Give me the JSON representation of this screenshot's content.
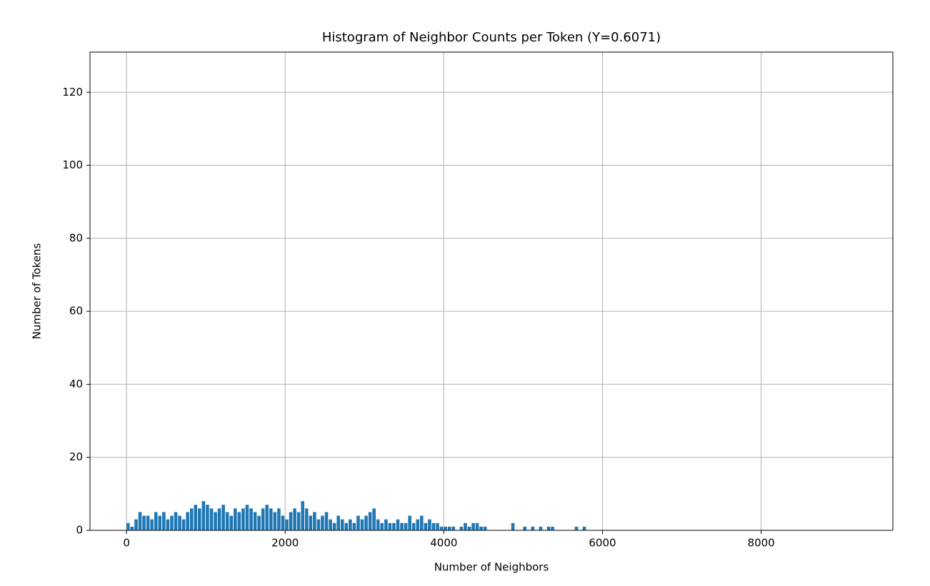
{
  "chart_data": {
    "type": "histogram",
    "title": "Histogram of Neighbor Counts per Token (Y=0.6071)",
    "x_label": "Number of Neighbors",
    "y_label": "Number of Tokens",
    "color": "#1f77b4",
    "grid": true,
    "xlim": [
      -460,
      9660
    ],
    "ylim": [
      0,
      131
    ],
    "xticks": [
      0,
      2000,
      4000,
      6000,
      8000
    ],
    "yticks": [
      0,
      20,
      40,
      60,
      80,
      100,
      120
    ],
    "bins": [
      0,
      50,
      100,
      150,
      200,
      250,
      300,
      350,
      400,
      450,
      500,
      550,
      600,
      650,
      700,
      750,
      800,
      850,
      900,
      950,
      1000,
      1050,
      1100,
      1150,
      1200,
      1250,
      1300,
      1350,
      1400,
      1450,
      1500,
      1550,
      1600,
      1650,
      1700,
      1750,
      1800,
      1850,
      1900,
      1950,
      2000,
      2050,
      2100,
      2150,
      2200,
      2250,
      2300,
      2350,
      2400,
      2450,
      2500,
      2550,
      2600,
      2650,
      2700,
      2750,
      2800,
      2850,
      2900,
      2950,
      3000,
      3050,
      3100,
      3150,
      3200,
      3250,
      3300,
      3350,
      3400,
      3450,
      3500,
      3550,
      3600,
      3650,
      3700,
      3750,
      3800,
      3850,
      3900,
      3950,
      4000,
      4050,
      4100,
      4150,
      4200,
      4250,
      4300,
      4350,
      4400,
      4450,
      4500,
      4550,
      4600,
      4650,
      4700,
      4750,
      4800,
      4850,
      4900,
      4950,
      5000,
      5050,
      5100,
      5150,
      5200,
      5250,
      5300,
      5350,
      5400,
      5450,
      5500,
      5550,
      5600,
      5650,
      5700,
      5750,
      5800
    ],
    "counts": [
      2,
      1,
      3,
      5,
      4,
      4,
      3,
      5,
      4,
      5,
      3,
      4,
      5,
      4,
      3,
      5,
      6,
      7,
      6,
      8,
      7,
      6,
      5,
      6,
      7,
      5,
      4,
      6,
      5,
      6,
      7,
      6,
      5,
      4,
      6,
      7,
      6,
      5,
      6,
      4,
      3,
      5,
      6,
      5,
      8,
      6,
      4,
      5,
      3,
      4,
      5,
      3,
      2,
      4,
      3,
      2,
      3,
      2,
      4,
      3,
      4,
      5,
      6,
      3,
      2,
      3,
      2,
      2,
      3,
      2,
      2,
      4,
      2,
      3,
      4,
      2,
      3,
      2,
      2,
      1,
      1,
      1,
      1,
      0,
      1,
      2,
      1,
      2,
      2,
      1,
      1,
      0,
      0,
      0,
      0,
      0,
      0,
      2,
      0,
      0,
      1,
      0,
      1,
      0,
      1,
      0,
      1,
      1,
      0,
      0,
      0,
      0,
      0,
      1,
      0,
      1
    ]
  }
}
